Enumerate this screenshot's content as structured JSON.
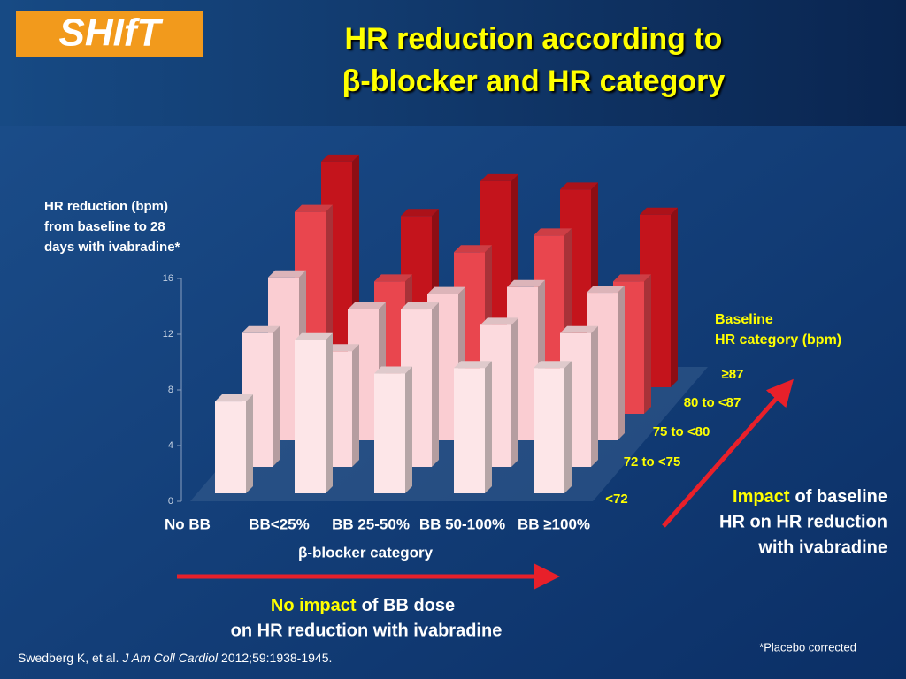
{
  "logo": "SHIfT",
  "chart_data": {
    "type": "bar3d",
    "title": [
      "HR reduction according to",
      "β-blocker and HR category"
    ],
    "y_label": [
      "HR reduction (bpm)",
      "from baseline to 28",
      "days with ivabradine*"
    ],
    "x_label": "β-blocker category",
    "legend_title": [
      "Baseline",
      "HR category (bpm)"
    ],
    "categories": [
      "No BB",
      "BB<25%",
      "BB 25-50%",
      "BB 50-100%",
      "BB ≥100%"
    ],
    "series": [
      {
        "name": "<72",
        "color": "#fde6e8",
        "values": [
          6.6,
          11.0,
          8.6,
          9.0,
          9.0
        ]
      },
      {
        "name": "72 to <75",
        "color": "#fcdade",
        "values": [
          9.6,
          8.3,
          11.3,
          10.2,
          9.6
        ]
      },
      {
        "name": "75 to <80",
        "color": "#facdd2",
        "values": [
          11.7,
          9.4,
          10.5,
          11.0,
          10.6
        ]
      },
      {
        "name": "80 to <87",
        "color": "#e9464e",
        "values": [
          14.5,
          9.5,
          11.6,
          12.8,
          9.5
        ]
      },
      {
        "name": "≥87",
        "color": "#c4141c",
        "values": [
          16.2,
          12.3,
          14.8,
          14.2,
          12.4
        ]
      }
    ],
    "ylim": [
      0,
      16
    ],
    "yticks": [
      0,
      4,
      8,
      12,
      16
    ],
    "annotations": {
      "impact": {
        "highlight": "Impact",
        "lines": [
          "of baseline",
          "HR on HR reduction",
          "with ivabradine"
        ]
      },
      "no_impact": {
        "highlight": "No impact",
        "lines": [
          "of BB dose",
          "on HR reduction with ivabradine"
        ]
      }
    },
    "footnote": "*Placebo corrected",
    "citation": {
      "authors": "Swedberg K, et al.",
      "journal": "J Am Coll Cardiol",
      "details": "2012;59:1938-1945."
    }
  }
}
